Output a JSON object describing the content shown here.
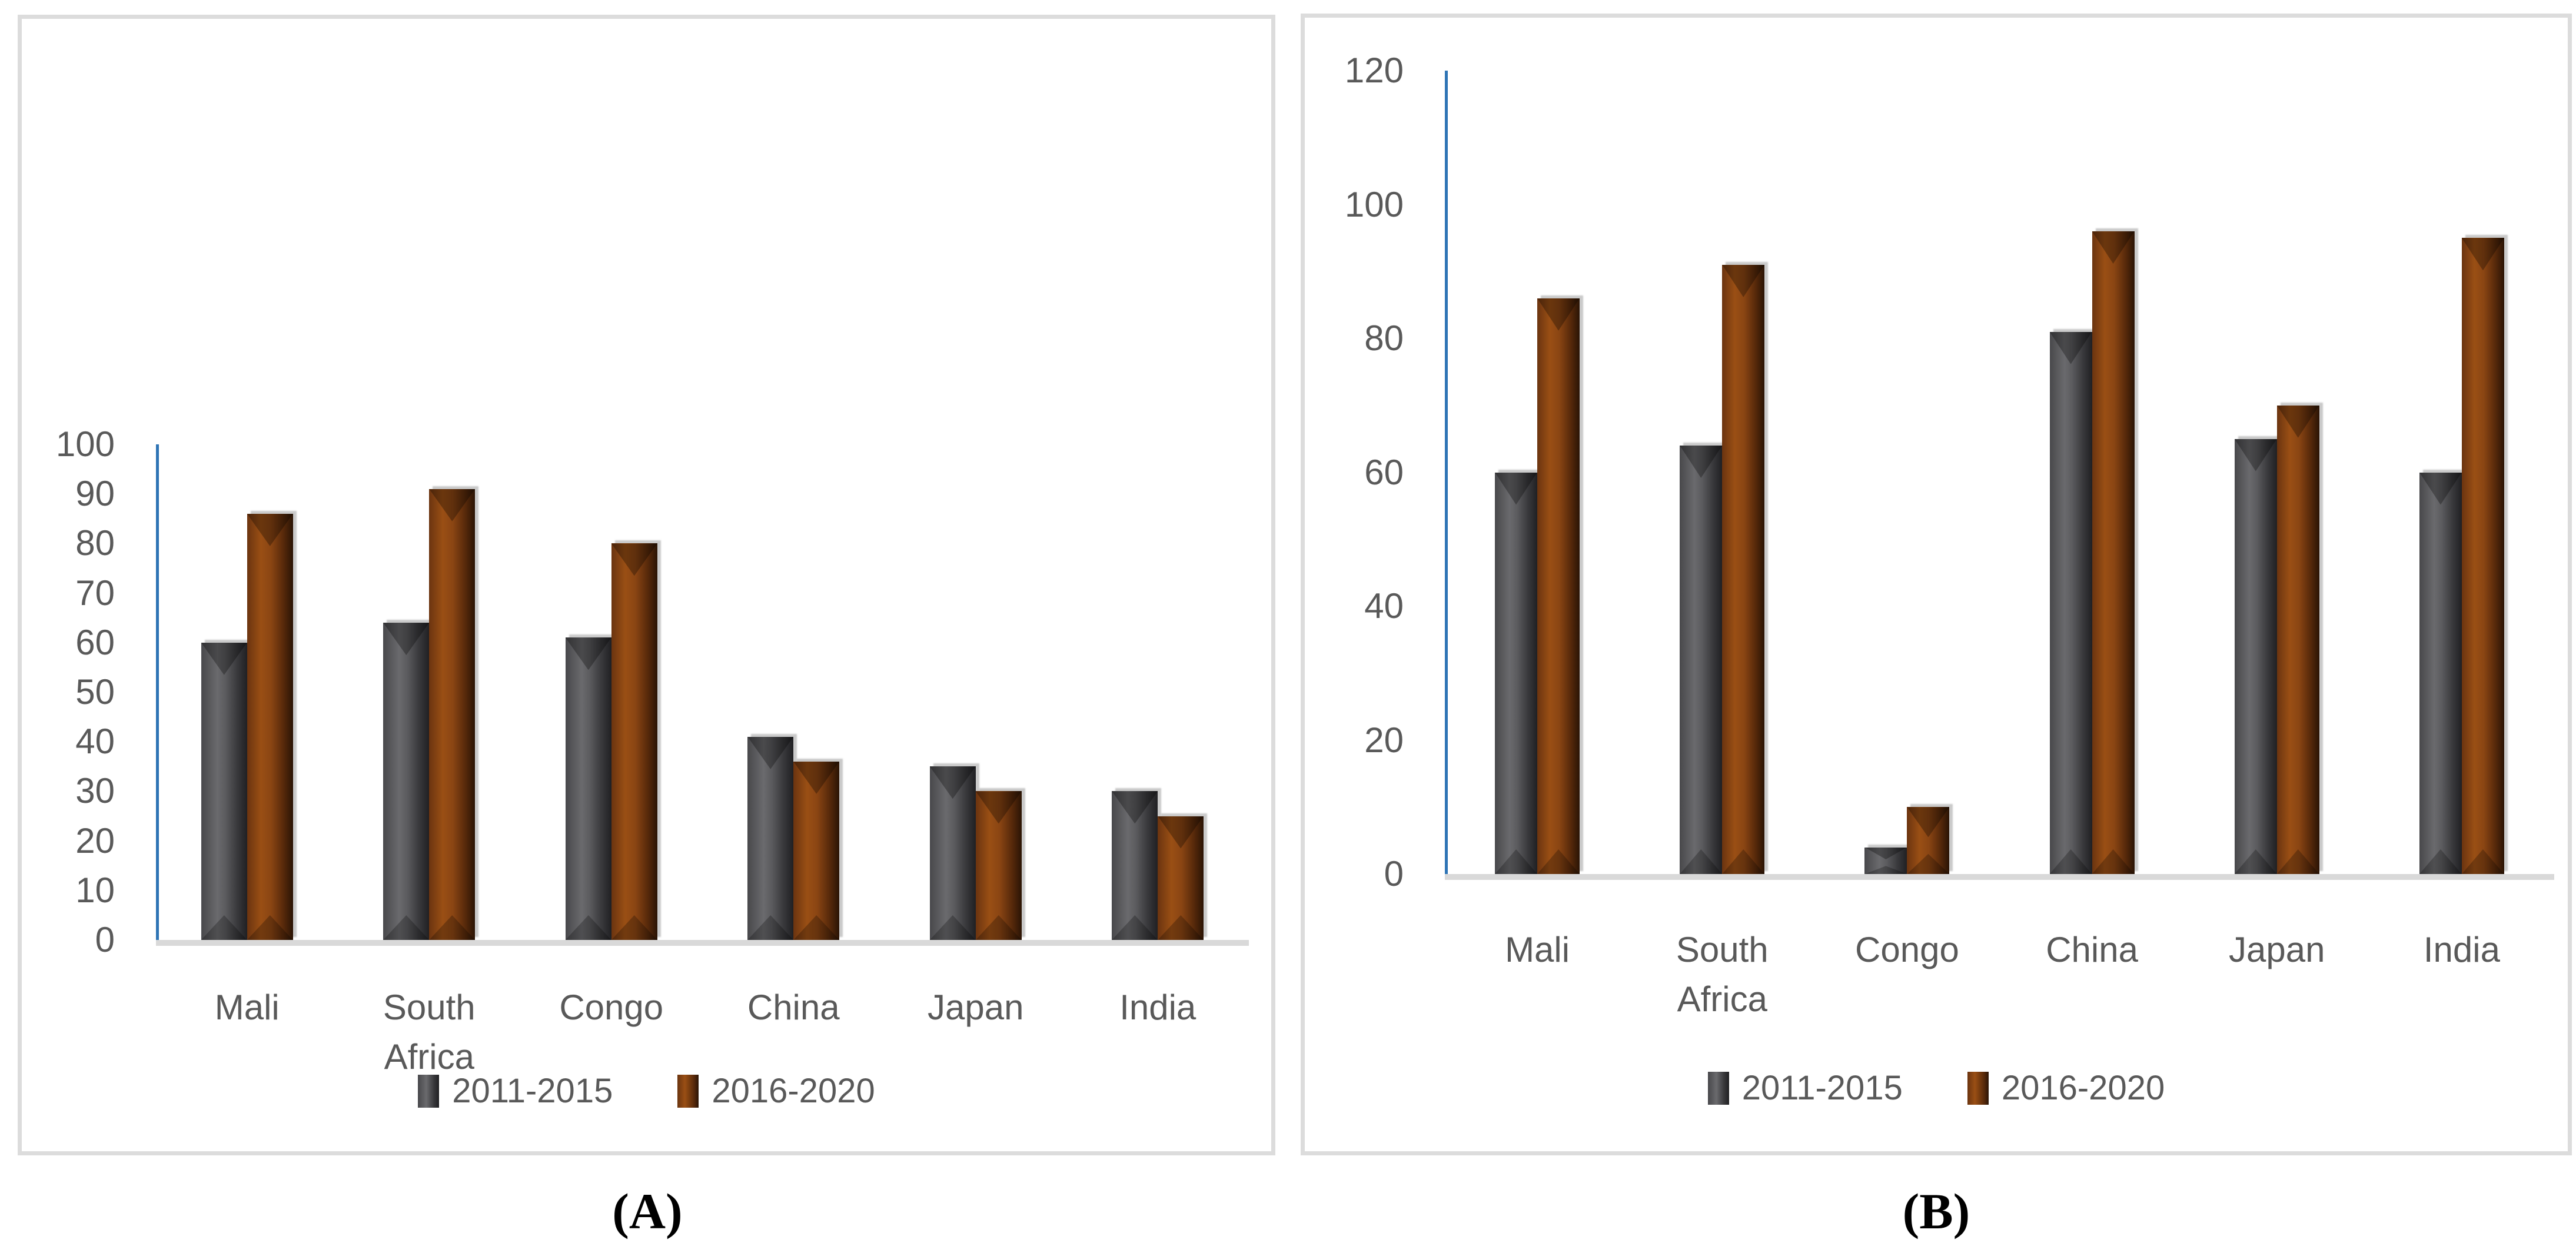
{
  "figure_captions": {
    "a": "(A)",
    "b": "(B)"
  },
  "colors": {
    "series_2011_2015": "#4a4a4d",
    "series_2016_2020": "#8a4513",
    "y_axis_line": "#2e74b5",
    "baseline": "#d9d9d9",
    "panel_border": "#dcdcdc",
    "label_text": "#595959",
    "caption_text": "#000000"
  },
  "chart_data": [
    {
      "id": "A",
      "type": "bar",
      "title": "",
      "xlabel": "",
      "ylabel": "",
      "categories": [
        "Mali",
        "South Africa",
        "Congo",
        "China",
        "Japan",
        "India"
      ],
      "series": [
        {
          "name": "2011-2015",
          "color": "#4a4a4d",
          "values": [
            60,
            64,
            61,
            41,
            35,
            30
          ]
        },
        {
          "name": "2016-2020",
          "color": "#8a4513",
          "values": [
            86,
            91,
            80,
            36,
            30,
            25
          ]
        }
      ],
      "ylim": [
        0,
        100
      ],
      "ytick_step": 10,
      "yticks_top_to_bottom": [
        "100",
        "90",
        "80",
        "70",
        "60",
        "50",
        "40",
        "30",
        "20",
        "10",
        "0"
      ],
      "grid": false,
      "legend_position": "bottom"
    },
    {
      "id": "B",
      "type": "bar",
      "title": "",
      "xlabel": "",
      "ylabel": "",
      "categories": [
        "Mali",
        "South Africa",
        "Congo",
        "China",
        "Japan",
        "India"
      ],
      "series": [
        {
          "name": "2011-2015",
          "color": "#4a4a4d",
          "values": [
            60,
            64,
            4,
            81,
            65,
            60
          ]
        },
        {
          "name": "2016-2020",
          "color": "#8a4513",
          "values": [
            86,
            91,
            10,
            96,
            70,
            95
          ]
        }
      ],
      "ylim": [
        0,
        120
      ],
      "ytick_step": 20,
      "yticks_top_to_bottom": [
        "120",
        "100",
        "80",
        "60",
        "40",
        "20",
        "0"
      ],
      "grid": false,
      "legend_position": "bottom"
    }
  ]
}
